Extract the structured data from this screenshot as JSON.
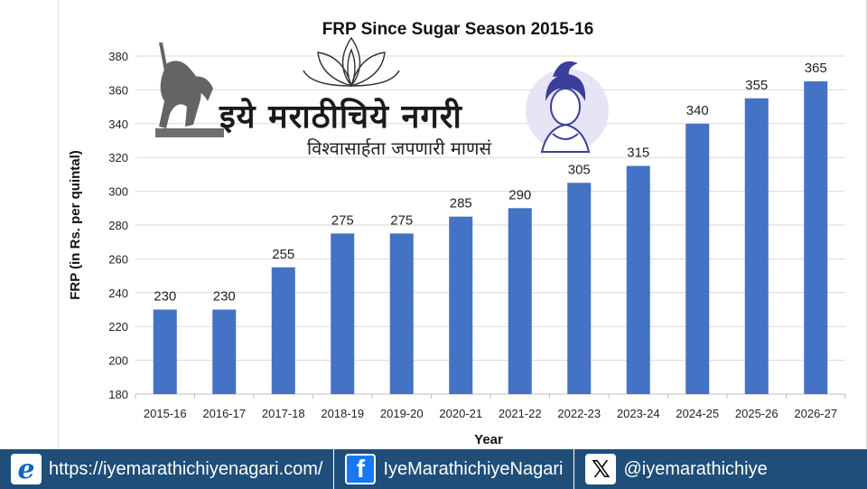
{
  "chart_data": {
    "type": "bar",
    "title": "FRP Since Sugar Season 2015-16",
    "xlabel": "Year",
    "ylabel": "FRP (in Rs. per quintal)",
    "categories": [
      "2015-16",
      "2016-17",
      "2017-18",
      "2018-19",
      "2019-20",
      "2020-21",
      "2021-22",
      "2022-23",
      "2023-24",
      "2024-25",
      "2025-26",
      "2026-27"
    ],
    "values": [
      230,
      230,
      255,
      275,
      275,
      285,
      290,
      305,
      315,
      340,
      355,
      365
    ],
    "ylim": [
      180,
      380
    ],
    "yticks": [
      180,
      200,
      220,
      240,
      260,
      280,
      300,
      320,
      340,
      360,
      380
    ],
    "grid": true,
    "bar_color": "#4472c4"
  },
  "watermark": {
    "title": "इये मराठीचिये नगरी",
    "subtitle": "विश्वासार्हता जपणारी माणसं"
  },
  "footer": {
    "website": "https://iyemarathichiyenagari.com/",
    "facebook": "IyeMarathichiyeNagari",
    "twitter": "@iyemarathichiye",
    "web_icon": "internet-explorer-icon",
    "facebook_icon": "facebook-icon",
    "x_icon": "x-twitter-icon"
  },
  "colors": {
    "footer_bg": "#1f4e79",
    "bar": "#4472c4"
  }
}
